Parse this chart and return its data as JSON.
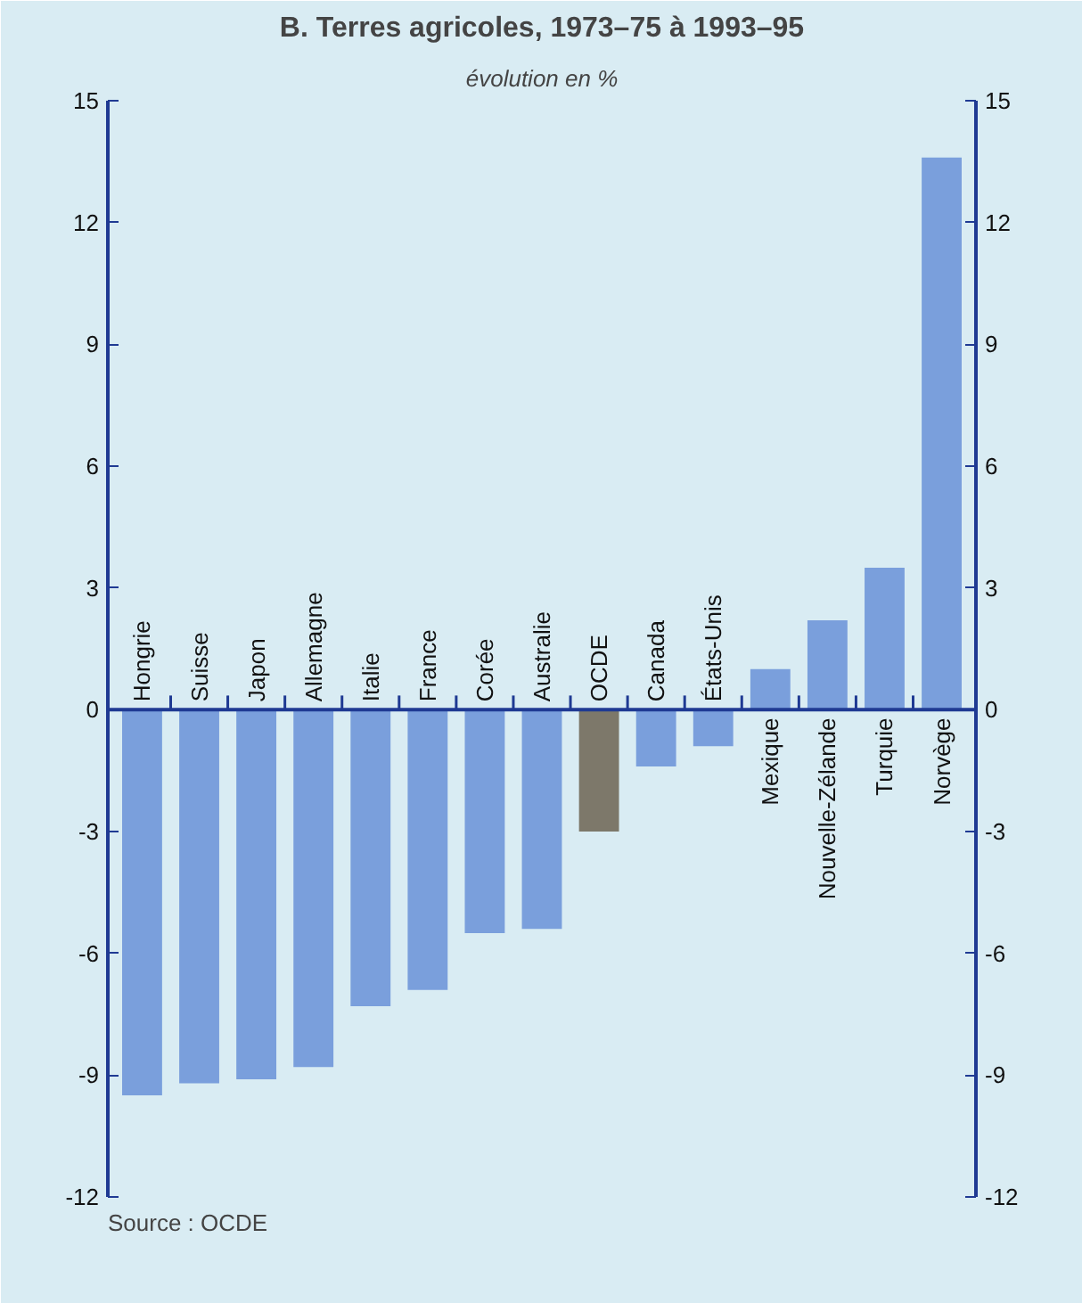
{
  "chart_data": {
    "type": "bar",
    "title": "B. Terres agricoles, 1973–75 à 1993–95",
    "subtitle": "évolution en %",
    "categories": [
      "Hongrie",
      "Suisse",
      "Japon",
      "Allemagne",
      "Italie",
      "France",
      "Corée",
      "Australie",
      "OCDE",
      "Canada",
      "États-Unis",
      "Mexique",
      "Nouvelle-Zélande",
      "Turquie",
      "Norvège"
    ],
    "values": [
      -9.5,
      -9.2,
      -9.1,
      -8.8,
      -7.3,
      -6.9,
      -5.5,
      -5.4,
      -3.0,
      -1.4,
      -0.9,
      1.0,
      2.2,
      3.5,
      13.6
    ],
    "colors": [
      "#7a9fdc",
      "#7a9fdc",
      "#7a9fdc",
      "#7a9fdc",
      "#7a9fdc",
      "#7a9fdc",
      "#7a9fdc",
      "#7a9fdc",
      "#7d786a",
      "#7a9fdc",
      "#7a9fdc",
      "#7a9fdc",
      "#7a9fdc",
      "#7a9fdc",
      "#7a9fdc"
    ],
    "ylim": [
      -12,
      15
    ],
    "yticks": [
      -12,
      -9,
      -6,
      -3,
      0,
      3,
      6,
      9,
      12,
      15
    ],
    "y2lim": [
      -12,
      15
    ],
    "y2ticks": [
      -12,
      -9,
      -6,
      -3,
      0,
      3,
      6,
      9,
      12,
      15
    ],
    "grid": false,
    "annotations": [
      "Source : OCDE"
    ]
  }
}
